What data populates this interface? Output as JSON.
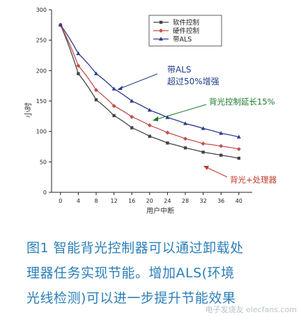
{
  "chart_data": {
    "type": "line",
    "x": [
      0,
      4,
      8,
      12,
      16,
      20,
      24,
      28,
      32,
      36,
      40
    ],
    "xticks": [
      "0",
      "4",
      "8",
      "12",
      "16",
      "20",
      "24",
      "28",
      "32",
      "36",
      "40"
    ],
    "yticks": [
      "0",
      "50",
      "100",
      "150",
      "200",
      "250",
      "300"
    ],
    "xlabel": "用户中断",
    "ylabel": "小时",
    "xlim": [
      -2,
      43
    ],
    "ylim": [
      0,
      300
    ],
    "grid": false,
    "legend_position": "top-center",
    "series": [
      {
        "name": "软件控制",
        "color": "#444444",
        "marker": "square",
        "values": [
          275,
          195,
          152,
          126,
          106,
          92,
          81,
          73,
          66,
          61,
          56
        ]
      },
      {
        "name": "硬件控制",
        "color": "#c0504d",
        "marker": "diamond",
        "values": [
          275,
          208,
          168,
          142,
          124,
          110,
          98,
          88,
          80,
          76,
          71
        ]
      },
      {
        "name": "带ALS",
        "color": "#2e3b8c",
        "marker": "triangle",
        "values": [
          275,
          228,
          195,
          170,
          150,
          135,
          123,
          113,
          105,
          97,
          91
        ]
      }
    ],
    "annotations": [
      {
        "lines": [
          "带ALS",
          "超过50%增强"
        ],
        "color": "#1f3c8a"
      },
      {
        "lines": [
          "背光控制延长15%"
        ],
        "color": "#1a7a2a"
      },
      {
        "lines": [
          "背光+处理器"
        ],
        "color": "#c0392b"
      }
    ]
  },
  "caption": {
    "lines": [
      "图1  智能背光控制器可以通过卸载处",
      "理器任务实现节能。增加ALS(环境",
      "光线检测)可以进一步提升节能效果"
    ]
  },
  "watermark": "电子发烧友 elecfans.com"
}
